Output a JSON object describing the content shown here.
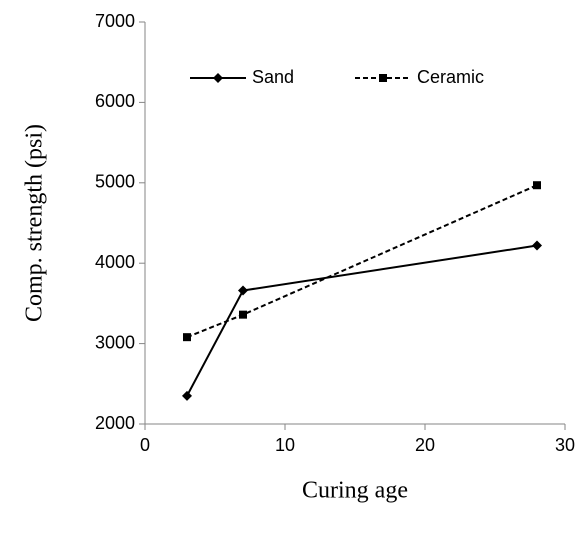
{
  "chart_data": {
    "type": "line",
    "x_label": "Curing age",
    "y_label": "Comp. strength  (psi)",
    "xlim": [
      0,
      30
    ],
    "xticks": [
      0,
      10,
      20,
      30
    ],
    "ylim": [
      2000,
      7000
    ],
    "yticks": [
      2000,
      3000,
      4000,
      5000,
      6000,
      7000
    ],
    "grid": false,
    "legend": "top",
    "series": [
      {
        "name": "Sand",
        "color": "#000000",
        "dash": "solid",
        "marker": "diamond",
        "x": [
          3,
          7,
          28
        ],
        "values": [
          2350,
          3660,
          4220
        ]
      },
      {
        "name": "Ceramic",
        "color": "#000000",
        "dash": "dashed",
        "marker": "square",
        "x": [
          3,
          7,
          28
        ],
        "values": [
          3080,
          3360,
          4970
        ]
      }
    ]
  }
}
